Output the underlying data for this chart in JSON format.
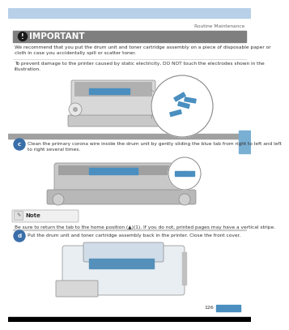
{
  "page_bg": "#ffffff",
  "header_bar_color": "#b8d0e8",
  "header_text": "Routine Maintenance",
  "header_text_color": "#666666",
  "important_bar_color": "#7f7f7f",
  "important_text": "IMPORTANT",
  "important_text_color": "#ffffff",
  "body_text_color": "#333333",
  "separator_color": "#cccccc",
  "body_text1": "We recommend that you put the drum unit and toner cartridge assembly on a piece of disposable paper or\ncloth in case you accidentally spill or scatter toner.",
  "body_text2": "To prevent damage to the printer caused by static electricity, DO NOT touch the electrodes shown in the\nillustration.",
  "step_c_text": "Clean the primary corona wire inside the drum unit by gently sliding the blue tab from right to left and left\nto right several times.",
  "note_text": "Be sure to return the tab to the home position (▲)(1). If you do not, printed pages may have a vertical stripe.",
  "step_d_text": "Put the drum unit and toner cartridge assembly back in the printer. Close the front cover.",
  "page_number": "126",
  "blue_accent": "#4a8fc0",
  "step_circle_color": "#3a6ea8",
  "footer_bg": "#000000",
  "note_bg": "#f0f0f0",
  "note_border": "#aaaaaa",
  "right_tab_color": "#7aafd4"
}
